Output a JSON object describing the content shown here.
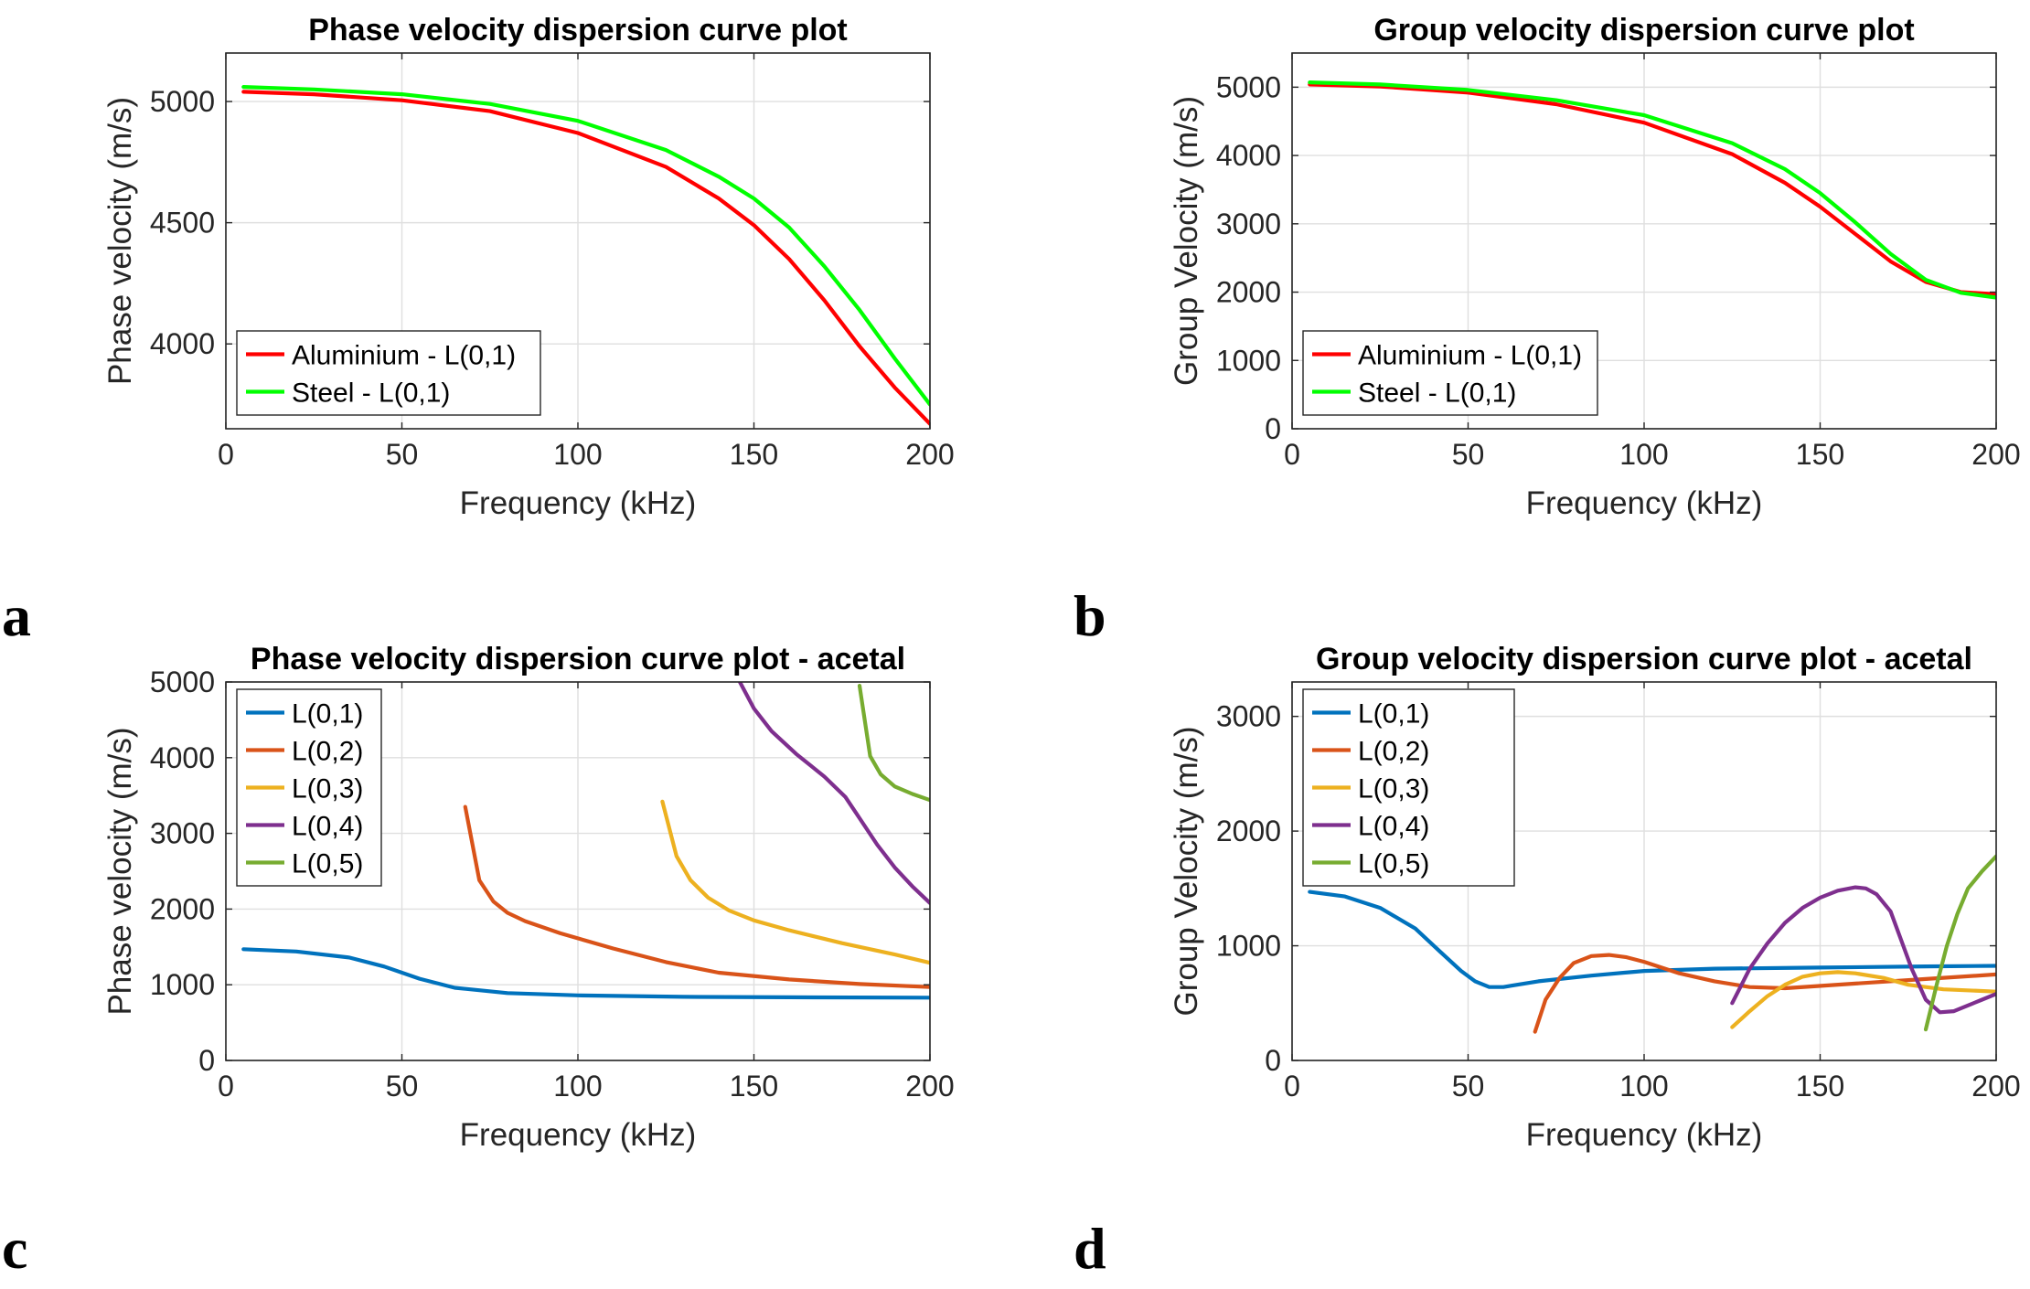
{
  "panel_labels": [
    "a",
    "b",
    "c",
    "d"
  ],
  "chart_data": [
    {
      "type": "line",
      "title": "Phase velocity dispersion curve plot",
      "xlabel": "Frequency (kHz)",
      "ylabel": "Phase velocity (m/s)",
      "xlim": [
        0,
        200
      ],
      "ylim": [
        3650,
        5200
      ],
      "xticks": [
        0,
        50,
        100,
        150,
        200
      ],
      "yticks": [
        4000,
        4500,
        5000
      ],
      "grid": true,
      "legend": "bottom-left",
      "series": [
        {
          "name": "Aluminium - L(0,1)",
          "color": "#ff0000",
          "x": [
            5,
            25,
            50,
            75,
            100,
            125,
            140,
            150,
            160,
            170,
            180,
            190,
            200
          ],
          "y": [
            5040,
            5030,
            5005,
            4960,
            4870,
            4730,
            4600,
            4490,
            4350,
            4180,
            3990,
            3820,
            3670
          ]
        },
        {
          "name": "Steel - L(0,1)",
          "color": "#00ff00",
          "x": [
            5,
            25,
            50,
            75,
            100,
            125,
            140,
            150,
            160,
            170,
            180,
            190,
            200
          ],
          "y": [
            5060,
            5050,
            5030,
            4990,
            4920,
            4800,
            4690,
            4600,
            4480,
            4320,
            4140,
            3940,
            3750
          ]
        }
      ]
    },
    {
      "type": "line",
      "title": "Group velocity dispersion curve plot",
      "xlabel": "Frequency (kHz)",
      "ylabel": "Group Velocity (m/s)",
      "xlim": [
        0,
        200
      ],
      "ylim": [
        0,
        5500
      ],
      "xticks": [
        0,
        50,
        100,
        150,
        200
      ],
      "yticks": [
        0,
        1000,
        2000,
        3000,
        4000,
        5000
      ],
      "grid": true,
      "legend": "bottom-left",
      "series": [
        {
          "name": "Aluminium - L(0,1)",
          "color": "#ff0000",
          "x": [
            5,
            25,
            50,
            75,
            100,
            125,
            140,
            150,
            160,
            170,
            180,
            190,
            200
          ],
          "y": [
            5040,
            5010,
            4920,
            4750,
            4480,
            4020,
            3600,
            3250,
            2850,
            2450,
            2150,
            2000,
            1970
          ]
        },
        {
          "name": "Steel - L(0,1)",
          "color": "#00ff00",
          "x": [
            5,
            25,
            50,
            75,
            100,
            125,
            140,
            150,
            160,
            170,
            180,
            190,
            200
          ],
          "y": [
            5070,
            5040,
            4960,
            4810,
            4590,
            4180,
            3800,
            3450,
            3020,
            2560,
            2180,
            1990,
            1920
          ]
        }
      ]
    },
    {
      "type": "line",
      "title": "Phase velocity dispersion curve plot - acetal",
      "xlabel": "Frequency (kHz)",
      "ylabel": "Phase velocity (m/s)",
      "xlim": [
        0,
        200
      ],
      "ylim": [
        0,
        5000
      ],
      "xticks": [
        0,
        50,
        100,
        150,
        200
      ],
      "yticks": [
        0,
        1000,
        2000,
        3000,
        4000,
        5000
      ],
      "grid": true,
      "legend": "top-left",
      "series": [
        {
          "name": "L(0,1)",
          "color": "#0072bd",
          "x": [
            5,
            20,
            35,
            45,
            55,
            65,
            80,
            100,
            130,
            160,
            200
          ],
          "y": [
            1470,
            1440,
            1360,
            1240,
            1080,
            960,
            890,
            860,
            840,
            835,
            830
          ]
        },
        {
          "name": "L(0,2)",
          "color": "#d95319",
          "x": [
            68,
            72,
            76,
            80,
            85,
            95,
            110,
            125,
            140,
            160,
            180,
            200
          ],
          "y": [
            3350,
            2380,
            2100,
            1950,
            1840,
            1680,
            1480,
            1300,
            1160,
            1070,
            1010,
            970
          ]
        },
        {
          "name": "L(0,3)",
          "color": "#edb120",
          "x": [
            124,
            128,
            132,
            137,
            143,
            150,
            160,
            175,
            190,
            200
          ],
          "y": [
            3420,
            2700,
            2380,
            2150,
            1980,
            1850,
            1720,
            1550,
            1400,
            1290
          ]
        },
        {
          "name": "L(0,4)",
          "color": "#7e2f8e",
          "x": [
            146,
            150,
            155,
            162,
            170,
            176,
            180,
            185,
            190,
            195,
            200
          ],
          "y": [
            5000,
            4650,
            4350,
            4050,
            3750,
            3480,
            3200,
            2850,
            2550,
            2300,
            2080
          ]
        },
        {
          "name": "L(0,5)",
          "color": "#77ac30",
          "x": [
            180,
            183,
            186,
            190,
            195,
            200
          ],
          "y": [
            4950,
            4020,
            3780,
            3620,
            3520,
            3440
          ]
        }
      ]
    },
    {
      "type": "line",
      "title": "Group velocity dispersion curve plot - acetal",
      "xlabel": "Frequency (kHz)",
      "ylabel": "Group Velocity (m/s)",
      "xlim": [
        0,
        200
      ],
      "ylim": [
        0,
        3300
      ],
      "xticks": [
        0,
        50,
        100,
        150,
        200
      ],
      "yticks": [
        0,
        1000,
        2000,
        3000
      ],
      "grid": true,
      "legend": "top-left",
      "series": [
        {
          "name": "L(0,1)",
          "color": "#0072bd",
          "x": [
            5,
            15,
            25,
            35,
            42,
            48,
            52,
            56,
            60,
            70,
            85,
            100,
            120,
            150,
            180,
            200
          ],
          "y": [
            1470,
            1430,
            1330,
            1150,
            950,
            780,
            690,
            640,
            640,
            690,
            740,
            780,
            800,
            810,
            820,
            825
          ]
        },
        {
          "name": "L(0,2)",
          "color": "#d95319",
          "x": [
            69,
            72,
            76,
            80,
            85,
            90,
            95,
            100,
            110,
            120,
            130,
            140,
            160,
            180,
            200
          ],
          "y": [
            250,
            530,
            720,
            850,
            910,
            920,
            900,
            860,
            760,
            690,
            640,
            630,
            670,
            710,
            750
          ]
        },
        {
          "name": "L(0,3)",
          "color": "#edb120",
          "x": [
            125,
            130,
            135,
            140,
            145,
            150,
            155,
            160,
            168,
            175,
            185,
            200
          ],
          "y": [
            290,
            430,
            560,
            660,
            730,
            760,
            770,
            760,
            720,
            660,
            620,
            600
          ]
        },
        {
          "name": "L(0,4)",
          "color": "#7e2f8e",
          "x": [
            125,
            130,
            135,
            140,
            145,
            150,
            155,
            160,
            163,
            166,
            170,
            173,
            176,
            180,
            184,
            188,
            192,
            196,
            200
          ],
          "y": [
            500,
            800,
            1020,
            1200,
            1330,
            1420,
            1480,
            1510,
            1500,
            1450,
            1300,
            1050,
            800,
            530,
            420,
            430,
            480,
            530,
            580
          ]
        },
        {
          "name": "L(0,5)",
          "color": "#77ac30",
          "x": [
            180,
            183,
            186,
            189,
            192,
            196,
            200
          ],
          "y": [
            270,
            650,
            1000,
            1280,
            1500,
            1650,
            1780
          ]
        }
      ]
    }
  ]
}
